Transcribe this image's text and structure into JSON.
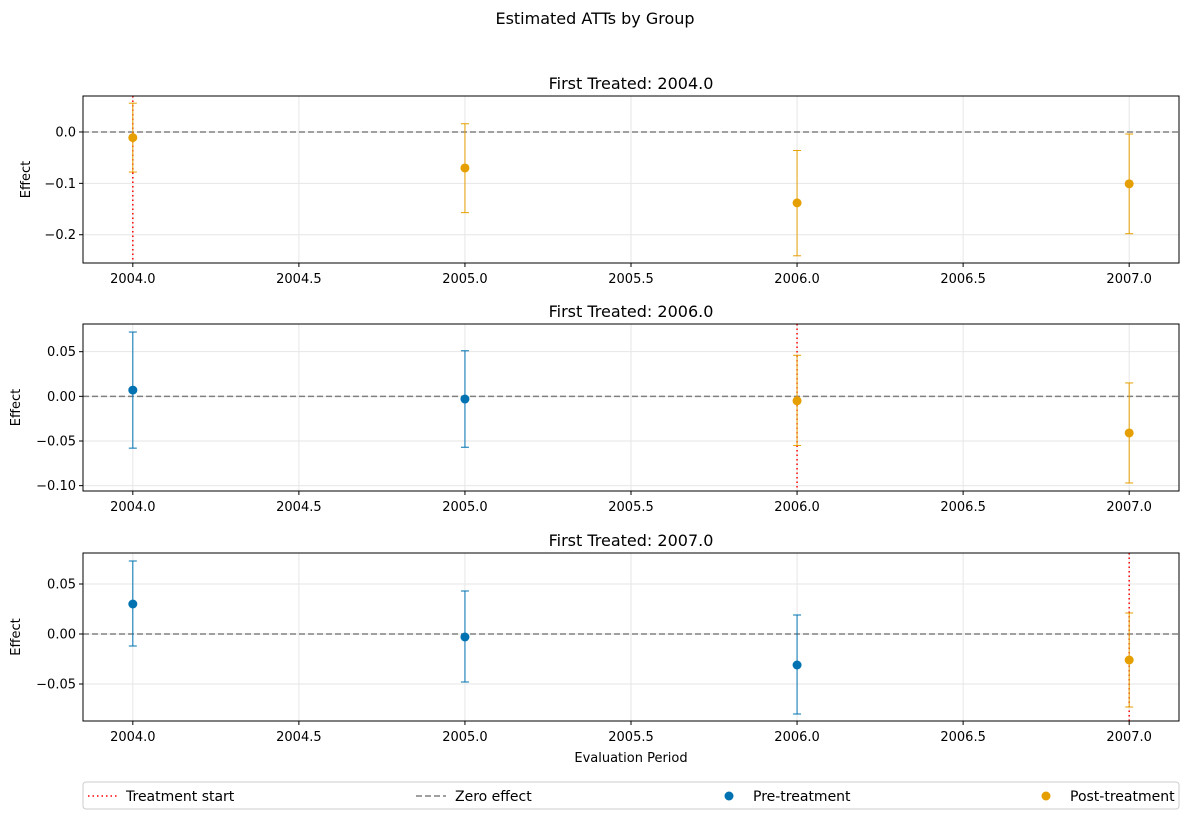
{
  "figure": {
    "suptitle": "Estimated ATTs by Group"
  },
  "chart_data": [
    {
      "type": "scatter",
      "title": "First Treated: 2004.0",
      "xlabel": "",
      "ylabel": "Effect",
      "xlim": [
        2003.85,
        2007.15
      ],
      "ylim": [
        -0.255,
        0.07
      ],
      "xticks": [
        2004.0,
        2004.5,
        2005.0,
        2005.5,
        2006.0,
        2006.5,
        2007.0
      ],
      "xtick_labels": [
        "2004.0",
        "2004.5",
        "2005.0",
        "2005.5",
        "2006.0",
        "2006.5",
        "2007.0"
      ],
      "yticks": [
        -0.2,
        -0.1,
        0.0
      ],
      "ytick_labels": [
        "−0.2",
        "−0.1",
        "0.0"
      ],
      "treatment_start": 2004.0,
      "grid": true,
      "points": [
        {
          "x": 2004.0,
          "y": -0.011,
          "lo": -0.078,
          "hi": 0.056,
          "phase": "post"
        },
        {
          "x": 2005.0,
          "y": -0.07,
          "lo": -0.157,
          "hi": 0.016,
          "phase": "post"
        },
        {
          "x": 2006.0,
          "y": -0.138,
          "lo": -0.241,
          "hi": -0.036,
          "phase": "post"
        },
        {
          "x": 2007.0,
          "y": -0.101,
          "lo": -0.198,
          "hi": -0.004,
          "phase": "post"
        }
      ]
    },
    {
      "type": "scatter",
      "title": "First Treated: 2006.0",
      "xlabel": "",
      "ylabel": "Effect",
      "xlim": [
        2003.85,
        2007.15
      ],
      "ylim": [
        -0.106,
        0.081
      ],
      "xticks": [
        2004.0,
        2004.5,
        2005.0,
        2005.5,
        2006.0,
        2006.5,
        2007.0
      ],
      "xtick_labels": [
        "2004.0",
        "2004.5",
        "2005.0",
        "2005.5",
        "2006.0",
        "2006.5",
        "2007.0"
      ],
      "yticks": [
        -0.1,
        -0.05,
        0.0,
        0.05
      ],
      "ytick_labels": [
        "−0.10",
        "−0.05",
        "0.00",
        "0.05"
      ],
      "treatment_start": 2006.0,
      "grid": true,
      "points": [
        {
          "x": 2004.0,
          "y": 0.007,
          "lo": -0.058,
          "hi": 0.072,
          "phase": "pre"
        },
        {
          "x": 2005.0,
          "y": -0.003,
          "lo": -0.057,
          "hi": 0.051,
          "phase": "pre"
        },
        {
          "x": 2006.0,
          "y": -0.005,
          "lo": -0.055,
          "hi": 0.046,
          "phase": "post"
        },
        {
          "x": 2007.0,
          "y": -0.041,
          "lo": -0.097,
          "hi": 0.015,
          "phase": "post"
        }
      ]
    },
    {
      "type": "scatter",
      "title": "First Treated: 2007.0",
      "xlabel": "Evaluation Period",
      "ylabel": "Effect",
      "xlim": [
        2003.85,
        2007.15
      ],
      "ylim": [
        -0.087,
        0.081
      ],
      "xticks": [
        2004.0,
        2004.5,
        2005.0,
        2005.5,
        2006.0,
        2006.5,
        2007.0
      ],
      "xtick_labels": [
        "2004.0",
        "2004.5",
        "2005.0",
        "2005.5",
        "2006.0",
        "2006.5",
        "2007.0"
      ],
      "yticks": [
        -0.05,
        0.0,
        0.05
      ],
      "ytick_labels": [
        "−0.05",
        "0.00",
        "0.05"
      ],
      "treatment_start": 2007.0,
      "grid": true,
      "points": [
        {
          "x": 2004.0,
          "y": 0.03,
          "lo": -0.012,
          "hi": 0.073,
          "phase": "pre"
        },
        {
          "x": 2005.0,
          "y": -0.003,
          "lo": -0.048,
          "hi": 0.043,
          "phase": "pre"
        },
        {
          "x": 2006.0,
          "y": -0.031,
          "lo": -0.08,
          "hi": 0.019,
          "phase": "pre"
        },
        {
          "x": 2007.0,
          "y": -0.026,
          "lo": -0.073,
          "hi": 0.021,
          "phase": "post"
        }
      ]
    }
  ],
  "legend": {
    "placement": "bottom",
    "items": [
      {
        "label": "Treatment start",
        "style": "dotted-line",
        "color": "#ff0000"
      },
      {
        "label": "Zero effect",
        "style": "dashed-line",
        "color": "#808080"
      },
      {
        "label": "Pre-treatment",
        "style": "marker",
        "color": "#0072b2"
      },
      {
        "label": "Post-treatment",
        "style": "marker",
        "color": "#e69f00"
      }
    ]
  },
  "colors": {
    "pre": "#0072b2",
    "post": "#e69f00",
    "treatment_line": "#ff0000",
    "zero_line": "#808080",
    "grid": "#e6e6e6"
  }
}
